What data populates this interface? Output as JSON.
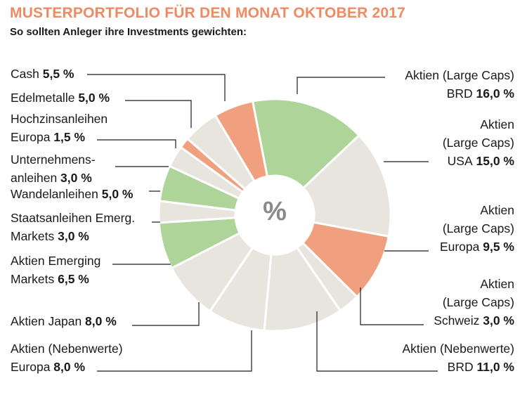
{
  "header": {
    "title": "MUSTERPORTFOLIO FÜR DEN MONAT OKTOBER 2017",
    "subtitle": "So sollten Anleger ihre Investments gewichten:"
  },
  "chart_data": {
    "type": "pie",
    "center_label": "%",
    "colors": {
      "green": "#aed49a",
      "orange": "#f0a07f",
      "beige": "#e8e5df"
    },
    "slices": [
      {
        "lines": [
          "Aktien (Large Caps)",
          "BRD"
        ],
        "value": 16.0,
        "value_text": "16,0 %",
        "color": "green"
      },
      {
        "lines": [
          "Aktien",
          "(Large Caps)",
          "USA"
        ],
        "value": 15.0,
        "value_text": "15,0 %",
        "color": "beige"
      },
      {
        "lines": [
          "Aktien",
          "(Large Caps)",
          "Europa"
        ],
        "value": 9.5,
        "value_text": "9,5 %",
        "color": "orange"
      },
      {
        "lines": [
          "Aktien",
          "(Large Caps)",
          "Schweiz"
        ],
        "value": 3.0,
        "value_text": "3,0 %",
        "color": "beige"
      },
      {
        "lines": [
          "Aktien (Nebenwerte)",
          "BRD"
        ],
        "value": 11.0,
        "value_text": "11,0 %",
        "color": "beige"
      },
      {
        "lines": [
          "Aktien (Nebenwerte)",
          "Europa"
        ],
        "value": 8.0,
        "value_text": "8,0 %",
        "color": "beige"
      },
      {
        "lines": [
          "Aktien Japan"
        ],
        "value": 8.0,
        "value_text": "8,0 %",
        "color": "beige"
      },
      {
        "lines": [
          "Aktien Emerging",
          "Markets"
        ],
        "value": 6.5,
        "value_text": "6,5 %",
        "color": "green"
      },
      {
        "lines": [
          "Staatsanleihen Emerg.",
          "Markets"
        ],
        "value": 3.0,
        "value_text": "3,0 %",
        "color": "beige"
      },
      {
        "lines": [
          "Wandelanleihen"
        ],
        "value": 5.0,
        "value_text": "5,0 %",
        "color": "green"
      },
      {
        "lines": [
          "Unternehmens-",
          "anleihen"
        ],
        "value": 3.0,
        "value_text": "3,0 %",
        "color": "beige"
      },
      {
        "lines": [
          "Hochzinsanleihen",
          "Europa"
        ],
        "value": 1.5,
        "value_text": "1,5 %",
        "color": "orange"
      },
      {
        "lines": [
          "Edelmetalle"
        ],
        "value": 5.0,
        "value_text": "5,0 %",
        "color": "beige"
      },
      {
        "lines": [
          "Cash"
        ],
        "value": 5.5,
        "value_text": "5,5 %",
        "color": "orange"
      }
    ]
  }
}
